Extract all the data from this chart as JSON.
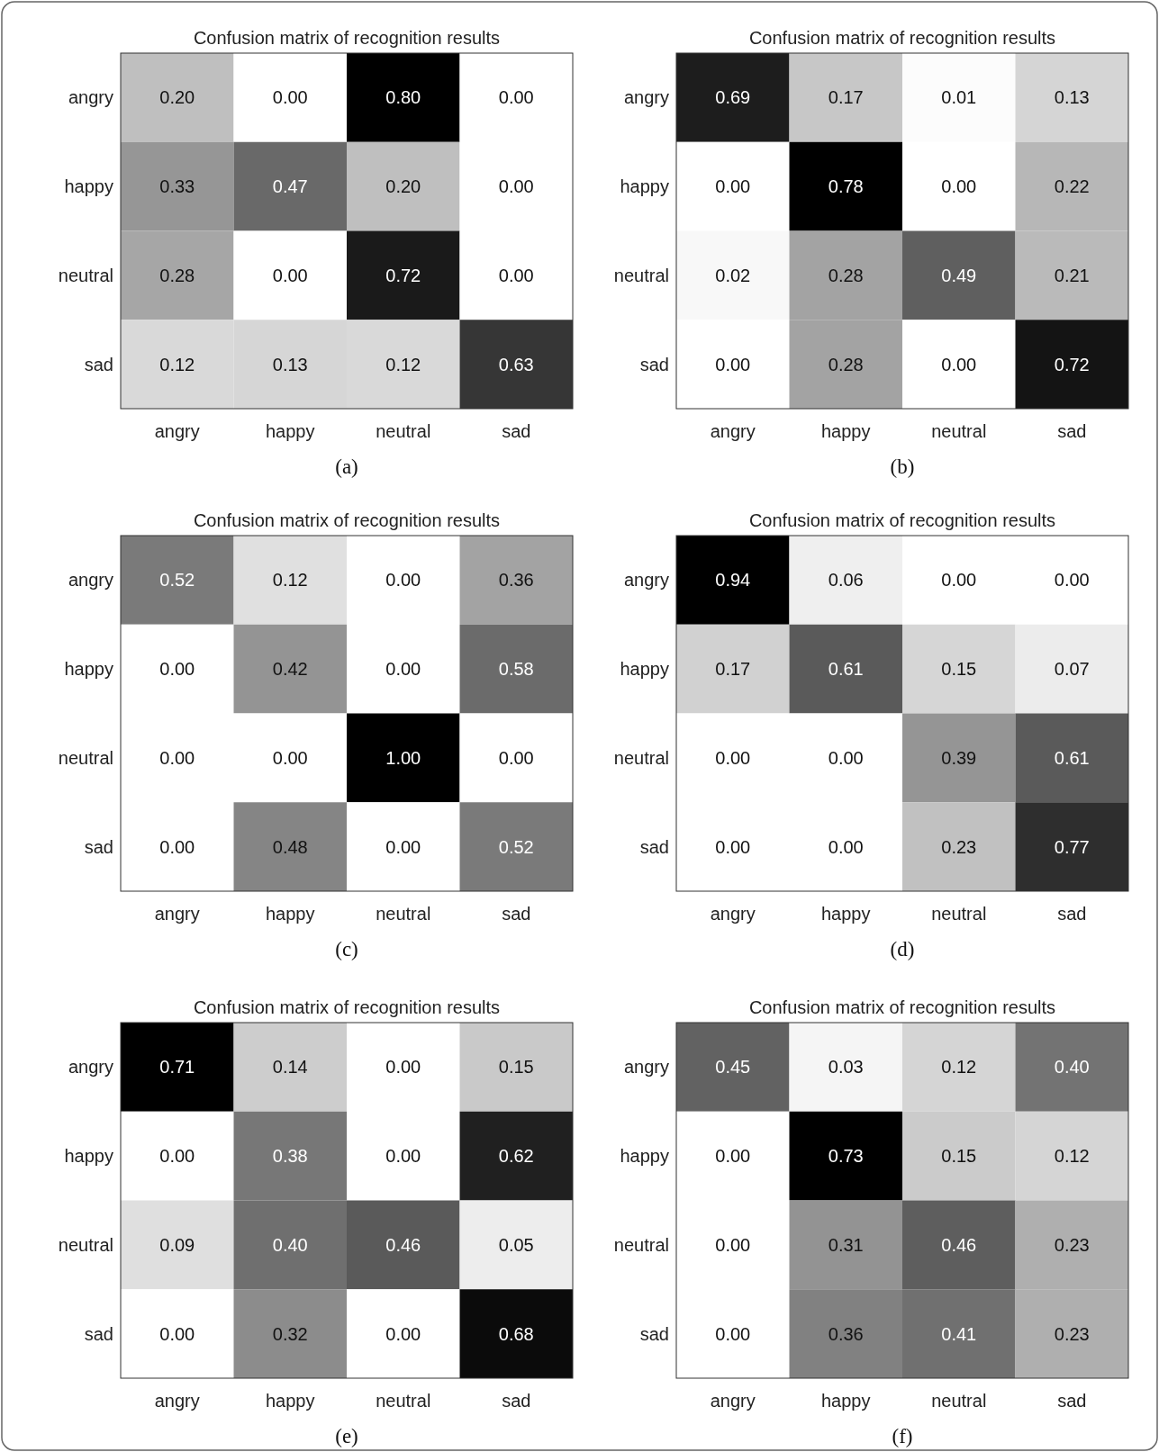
{
  "chart_data": [
    {
      "type": "heatmap",
      "title": "Confusion matrix of recognition results",
      "categories": [
        "angry",
        "happy",
        "neutral",
        "sad"
      ],
      "y_categories": [
        "angry",
        "happy",
        "neutral",
        "sad"
      ],
      "cells": [
        [
          0.2,
          0,
          0.8,
          0
        ],
        [
          0.33,
          0.47,
          0.2,
          0
        ],
        [
          0.28,
          0,
          0.72,
          0
        ],
        [
          0.12,
          0.13,
          0.12,
          0.63
        ]
      ],
      "cell_labels": [
        [
          "0.20",
          "0.00",
          "0.80",
          "0.00"
        ],
        [
          "0.33",
          "0.47",
          "0.20",
          "0.00"
        ],
        [
          "0.28",
          "0.00",
          "0.72",
          "0.00"
        ],
        [
          "0.12",
          "0.13",
          "0.12",
          "0.63"
        ]
      ],
      "annotations": [
        "(a)"
      ]
    },
    {
      "type": "heatmap",
      "title": "Confusion matrix of recognition results",
      "categories": [
        "angry",
        "happy",
        "neutral",
        "sad"
      ],
      "y_categories": [
        "angry",
        "happy",
        "neutral",
        "sad"
      ],
      "cells": [
        [
          0.69,
          0.17,
          0.01,
          0.13
        ],
        [
          0,
          0.78,
          0,
          0.22
        ],
        [
          0.02,
          0.28,
          0.49,
          0.21
        ],
        [
          0,
          0.28,
          0,
          0.72
        ]
      ],
      "cell_labels": [
        [
          "0.69",
          "0.17",
          "0.01",
          "0.13"
        ],
        [
          "0.00",
          "0.78",
          "0.00",
          "0.22"
        ],
        [
          "0.02",
          "0.28",
          "0.49",
          "0.21"
        ],
        [
          "0.00",
          "0.28",
          "0.00",
          "0.72"
        ]
      ],
      "annotations": [
        "(b)"
      ]
    },
    {
      "type": "heatmap",
      "title": "Confusion matrix of recognition results",
      "categories": [
        "angry",
        "happy",
        "neutral",
        "sad"
      ],
      "y_categories": [
        "angry",
        "happy",
        "neutral",
        "sad"
      ],
      "cells": [
        [
          0.52,
          0.12,
          0,
          0.36
        ],
        [
          0,
          0.42,
          0,
          0.58
        ],
        [
          0,
          0,
          1.0,
          0
        ],
        [
          0,
          0.48,
          0,
          0.52
        ]
      ],
      "cell_labels": [
        [
          "0.52",
          "0.12",
          "0.00",
          "0.36"
        ],
        [
          "0.00",
          "0.42",
          "0.00",
          "0.58"
        ],
        [
          "0.00",
          "0.00",
          "1.00",
          "0.00"
        ],
        [
          "0.00",
          "0.48",
          "0.00",
          "0.52"
        ]
      ],
      "annotations": [
        "(c)"
      ]
    },
    {
      "type": "heatmap",
      "title": "Confusion matrix of recognition results",
      "categories": [
        "angry",
        "happy",
        "neutral",
        "sad"
      ],
      "y_categories": [
        "angry",
        "happy",
        "neutral",
        "sad"
      ],
      "cells": [
        [
          0.94,
          0.06,
          0,
          0
        ],
        [
          0.17,
          0.61,
          0.15,
          0.07
        ],
        [
          0,
          0,
          0.39,
          0.61
        ],
        [
          0,
          0,
          0.23,
          0.77
        ]
      ],
      "cell_labels": [
        [
          "0.94",
          "0.06",
          "0.00",
          "0.00"
        ],
        [
          "0.17",
          "0.61",
          "0.15",
          "0.07"
        ],
        [
          "0.00",
          "0.00",
          "0.39",
          "0.61"
        ],
        [
          "0.00",
          "0.00",
          "0.23",
          "0.77"
        ]
      ],
      "annotations": [
        "(d)"
      ]
    },
    {
      "type": "heatmap",
      "title": "Confusion matrix of recognition results",
      "categories": [
        "angry",
        "happy",
        "neutral",
        "sad"
      ],
      "y_categories": [
        "angry",
        "happy",
        "neutral",
        "sad"
      ],
      "cells": [
        [
          0.71,
          0.14,
          0,
          0.15
        ],
        [
          0,
          0.38,
          0,
          0.62
        ],
        [
          0.09,
          0.4,
          0.46,
          0.05
        ],
        [
          0,
          0.32,
          0,
          0.68
        ]
      ],
      "cell_labels": [
        [
          "0.71",
          "0.14",
          "0.00",
          "0.15"
        ],
        [
          "0.00",
          "0.38",
          "0.00",
          "0.62"
        ],
        [
          "0.09",
          "0.40",
          "0.46",
          "0.05"
        ],
        [
          "0.00",
          "0.32",
          "0.00",
          "0.68"
        ]
      ],
      "annotations": [
        "(e)"
      ]
    },
    {
      "type": "heatmap",
      "title": "Confusion matrix of recognition results",
      "categories": [
        "angry",
        "happy",
        "neutral",
        "sad"
      ],
      "y_categories": [
        "angry",
        "happy",
        "neutral",
        "sad"
      ],
      "cells": [
        [
          0.45,
          0.03,
          0.12,
          0.4
        ],
        [
          0,
          0.73,
          0.15,
          0.12
        ],
        [
          0,
          0.31,
          0.46,
          0.23
        ],
        [
          0,
          0.36,
          0.41,
          0.23
        ]
      ],
      "cell_labels": [
        [
          "0.45",
          "0.03",
          "0.12",
          "0.40"
        ],
        [
          "0.00",
          "0.73",
          "0.15",
          "0.12"
        ],
        [
          "0.00",
          "0.31",
          "0.46",
          "0.23"
        ],
        [
          "0.00",
          "0.36",
          "0.41",
          "0.23"
        ]
      ],
      "annotations": [
        "(f)"
      ]
    }
  ]
}
